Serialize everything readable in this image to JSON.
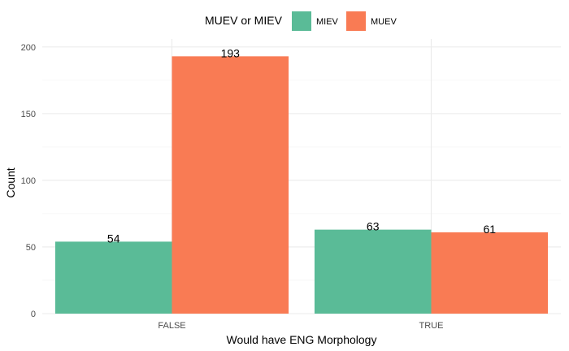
{
  "chart_data": {
    "type": "bar",
    "xlabel": "Would have ENG Morphology",
    "ylabel": "Count",
    "categories": [
      "FALSE",
      "TRUE"
    ],
    "series": [
      {
        "name": "MIEV",
        "values": [
          54,
          63
        ],
        "color": "#5ABB97"
      },
      {
        "name": "MUEV",
        "values": [
          193,
          61
        ],
        "color": "#F97B54"
      }
    ],
    "ylim": [
      0,
      206
    ],
    "yticks": [
      0,
      50,
      100,
      150,
      200
    ],
    "grid": true,
    "legend": {
      "title": "MUEV or MIEV",
      "position": "top"
    },
    "data_labels": true
  }
}
